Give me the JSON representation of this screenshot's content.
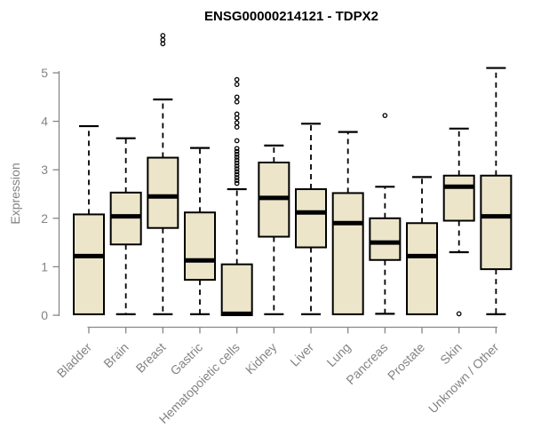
{
  "title": "ENSG00000214121 - TDPX2",
  "colors": {
    "background": "#ffffff",
    "box_fill": "#ece5c9",
    "box_stroke": "#000000",
    "median_color": "#000000",
    "whisker_color": "#000000",
    "axis_line": "#878787",
    "axis_text": "#838383",
    "title_color": "#000000"
  },
  "chart_data": {
    "type": "boxplot",
    "title": "ENSG00000214121 - TDPX2",
    "xlabel": "",
    "ylabel": "Expression",
    "ylim": [
      0,
      5.8
    ],
    "yticks": [
      0,
      1,
      2,
      3,
      4,
      5
    ],
    "grid": false,
    "legend": null,
    "categories": [
      "Bladder",
      "Brain",
      "Breast",
      "Gastric",
      "Hematopoietic cells",
      "Kidney",
      "Liver",
      "Lung",
      "Pancreas",
      "Prostate",
      "Skin",
      "Unknown / Other"
    ],
    "boxes": [
      {
        "category": "Bladder",
        "whisker_low": 0.02,
        "q1": 0.02,
        "median": 1.22,
        "q3": 2.08,
        "whisker_high": 3.9,
        "outliers": []
      },
      {
        "category": "Brain",
        "whisker_low": 0.02,
        "q1": 1.46,
        "median": 2.04,
        "q3": 2.53,
        "whisker_high": 3.65,
        "outliers": []
      },
      {
        "category": "Breast",
        "whisker_low": 0.02,
        "q1": 1.8,
        "median": 2.45,
        "q3": 3.25,
        "whisker_high": 4.45,
        "outliers": [
          5.6,
          5.68,
          5.77
        ]
      },
      {
        "category": "Gastric",
        "whisker_low": 0.02,
        "q1": 0.73,
        "median": 1.13,
        "q3": 2.12,
        "whisker_high": 3.45,
        "outliers": []
      },
      {
        "category": "Hematopoietic cells",
        "whisker_low": 0.0,
        "q1": 0.0,
        "median": 0.03,
        "q3": 1.05,
        "whisker_high": 2.6,
        "outliers": [
          2.72,
          2.78,
          2.84,
          2.9,
          2.96,
          3.02,
          3.08,
          3.14,
          3.2,
          3.26,
          3.32,
          3.38,
          3.44,
          3.6,
          3.88,
          3.97,
          4.07,
          4.15,
          4.4,
          4.5,
          4.76,
          4.86
        ]
      },
      {
        "category": "Kidney",
        "whisker_low": 0.02,
        "q1": 1.62,
        "median": 2.42,
        "q3": 3.15,
        "whisker_high": 3.5,
        "outliers": []
      },
      {
        "category": "Liver",
        "whisker_low": 0.02,
        "q1": 1.4,
        "median": 2.12,
        "q3": 2.6,
        "whisker_high": 3.95,
        "outliers": []
      },
      {
        "category": "Lung",
        "whisker_low": 0.02,
        "q1": 0.02,
        "median": 1.9,
        "q3": 2.52,
        "whisker_high": 3.78,
        "outliers": []
      },
      {
        "category": "Pancreas",
        "whisker_low": 0.03,
        "q1": 1.14,
        "median": 1.5,
        "q3": 2.0,
        "whisker_high": 2.65,
        "outliers": [
          4.12
        ]
      },
      {
        "category": "Prostate",
        "whisker_low": 0.02,
        "q1": 0.02,
        "median": 1.22,
        "q3": 1.9,
        "whisker_high": 2.85,
        "outliers": []
      },
      {
        "category": "Skin",
        "whisker_low": 1.3,
        "q1": 1.95,
        "median": 2.65,
        "q3": 2.88,
        "whisker_high": 3.85,
        "outliers": [
          0.03
        ]
      },
      {
        "category": "Unknown / Other",
        "whisker_low": 0.02,
        "q1": 0.95,
        "median": 2.04,
        "q3": 2.88,
        "whisker_high": 5.1,
        "outliers": []
      }
    ]
  }
}
